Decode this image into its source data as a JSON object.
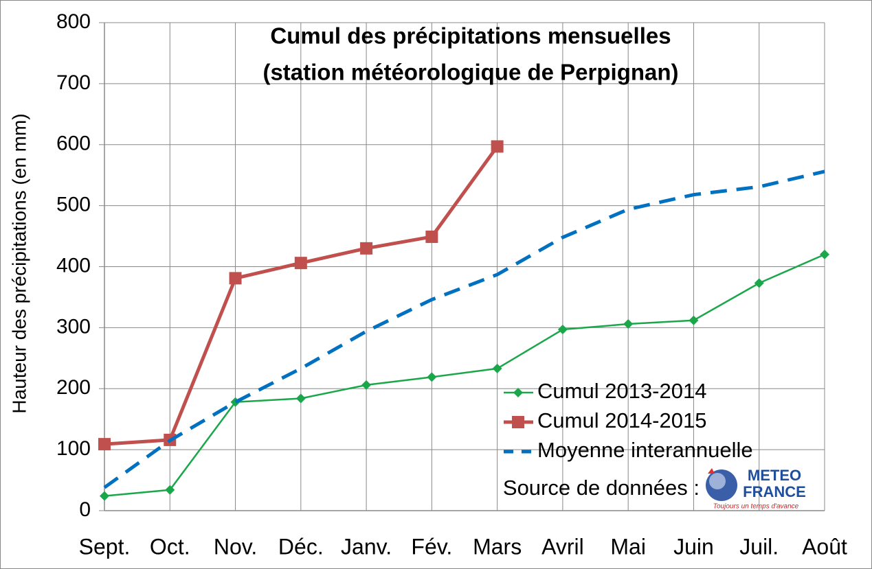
{
  "chart_data": {
    "type": "line",
    "title": [
      "Cumul des précipitations mensuelles",
      "(station météorologique de Perpignan)"
    ],
    "y_label": "Hauteur des précipitations (en mm)",
    "categories": [
      "Sept.",
      "Oct.",
      "Nov.",
      "Déc.",
      "Janv.",
      "Fév.",
      "Mars",
      "Avril",
      "Mai",
      "Juin",
      "Juil.",
      "Août"
    ],
    "series": [
      {
        "name": "Cumul 2013-2014",
        "color": "#1aa74a",
        "marker": "diamond",
        "values": [
          24,
          34,
          178,
          184,
          206,
          219,
          233,
          297,
          306,
          312,
          373,
          420
        ]
      },
      {
        "name": "Cumul 2014-2015",
        "color": "#c0504d",
        "marker": "square",
        "values": [
          109,
          116,
          381,
          406,
          430,
          449,
          597,
          null,
          null,
          null,
          null,
          null
        ]
      },
      {
        "name": "Moyenne interannuelle",
        "color": "#0070c0",
        "dashed": true,
        "values": [
          38,
          115,
          178,
          233,
          294,
          346,
          387,
          448,
          494,
          518,
          531,
          556
        ]
      }
    ],
    "ylim": [
      0,
      800
    ],
    "yticks": [
      0,
      100,
      200,
      300,
      400,
      500,
      600,
      700,
      800
    ],
    "grid": true,
    "source": {
      "label": "Source de données :",
      "logo": [
        "METEO",
        "FRANCE",
        "Toujours un temps d'avance"
      ]
    }
  }
}
